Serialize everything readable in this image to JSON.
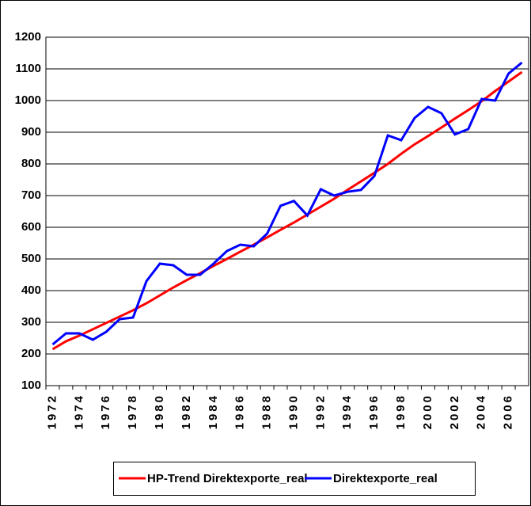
{
  "chart_data": {
    "type": "line",
    "categories": [
      "1972",
      null,
      "1974",
      null,
      "1976",
      null,
      "1978",
      null,
      "1980",
      null,
      "1982",
      null,
      "1984",
      null,
      "1986",
      null,
      "1988",
      null,
      "1990",
      null,
      "1992",
      null,
      "1994",
      null,
      "1996",
      null,
      "1998",
      null,
      "2000",
      null,
      "2002",
      null,
      "2004",
      null,
      "2006",
      null
    ],
    "series": [
      {
        "name": "HP-Trend Direktexporte_real",
        "color": "#ff0000",
        "values": [
          215,
          240,
          258,
          278,
          298,
          318,
          338,
          360,
          385,
          410,
          433,
          455,
          478,
          500,
          523,
          545,
          568,
          592,
          615,
          640,
          665,
          690,
          718,
          745,
          772,
          800,
          832,
          862,
          888,
          915,
          943,
          970,
          998,
          1030,
          1060,
          1090
        ]
      },
      {
        "name": "Direktexporte_real",
        "color": "#0000ff",
        "values": [
          230,
          265,
          265,
          245,
          270,
          310,
          315,
          430,
          485,
          480,
          450,
          450,
          485,
          525,
          545,
          540,
          580,
          668,
          683,
          637,
          720,
          700,
          712,
          718,
          762,
          890,
          875,
          945,
          980,
          960,
          893,
          910,
          1005,
          1000,
          1085,
          1120
        ]
      }
    ],
    "ylim": [
      100,
      1200
    ],
    "yticks": [
      100,
      200,
      300,
      400,
      500,
      600,
      700,
      800,
      900,
      1000,
      1100,
      1200
    ],
    "grid": true,
    "legend": "bottom"
  }
}
